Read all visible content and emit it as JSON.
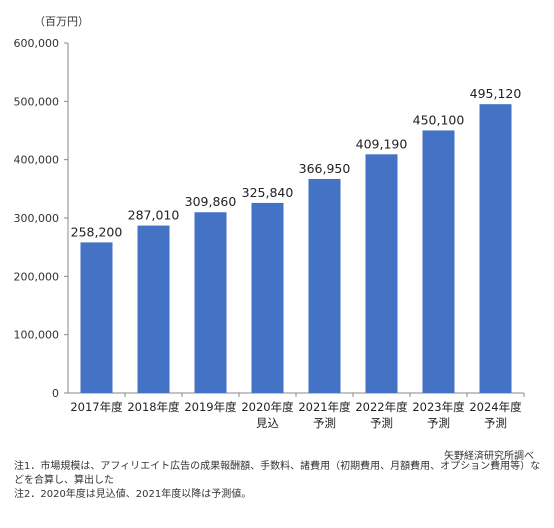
{
  "chart_data": {
    "type": "bar",
    "unit_label": "（百万円）",
    "categories": [
      [
        "2017年度"
      ],
      [
        "2018年度"
      ],
      [
        "2019年度"
      ],
      [
        "2020年度",
        "見込"
      ],
      [
        "2021年度",
        "予測"
      ],
      [
        "2022年度",
        "予測"
      ],
      [
        "2023年度",
        "予測"
      ],
      [
        "2024年度",
        "予測"
      ]
    ],
    "values": [
      258200,
      287010,
      309860,
      325840,
      366950,
      409190,
      450100,
      495120
    ],
    "value_labels": [
      "258,200",
      "287,010",
      "309,860",
      "325,840",
      "366,950",
      "409,190",
      "450,100",
      "495,120"
    ],
    "ylim": [
      0,
      600000
    ],
    "yticks": [
      0,
      100000,
      200000,
      300000,
      400000,
      500000,
      600000
    ],
    "ytick_labels": [
      "0",
      "100,000",
      "200,000",
      "300,000",
      "400,000",
      "500,000",
      "600,000"
    ],
    "grid": false,
    "bar_color": "#4472c4"
  },
  "source": "矢野経済研究所調べ",
  "notes": [
    "注1．市場規模は、アフィリエイト広告の成果報酬額、手数料、諸費用（初期費用、月額費用、オプション費用等）などを合算し、算出した",
    "注2．2020年度は見込値、2021年度以降は予測値。"
  ]
}
